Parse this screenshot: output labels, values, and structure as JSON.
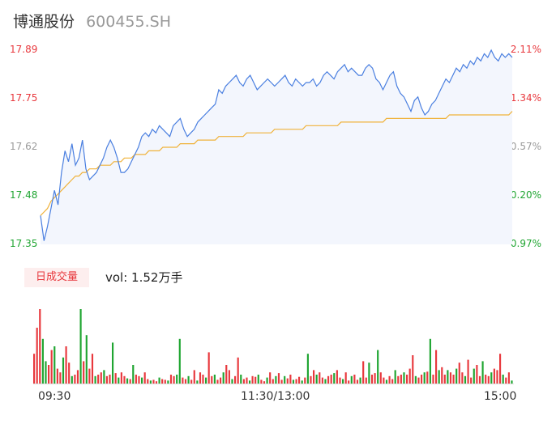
{
  "header": {
    "name": "博通股份",
    "code": "600455.SH"
  },
  "volume_panel": {
    "badge_label": "日成交量",
    "vol_label": "vol: 1.52万手"
  },
  "colors": {
    "up": "#e8383d",
    "down": "#1fa531",
    "price_line": "#4a7fe0",
    "avg_line": "#f0b23a",
    "area_fill": "#f3f6fd",
    "neutral": "#999999"
  },
  "chart_data": [
    {
      "type": "line",
      "title": "",
      "y_left_ticks": [
        "17.89",
        "17.75",
        "17.62",
        "17.48",
        "17.35"
      ],
      "y_right_ticks": [
        "2.11%",
        "1.34%",
        "0.57%",
        "-0.20%",
        "-0.97%"
      ],
      "ylim": [
        17.35,
        17.89
      ],
      "x_ticks": [
        "09:30",
        "11:30/13:00",
        "15:00"
      ],
      "series": [
        {
          "values": [
            17.43,
            17.36,
            17.4,
            17.45,
            17.5,
            17.46,
            17.55,
            17.61,
            17.58,
            17.63,
            17.57,
            17.59,
            17.64,
            17.56,
            17.53,
            17.54,
            17.55,
            17.57,
            17.59,
            17.62,
            17.64,
            17.62,
            17.59,
            17.55,
            17.55,
            17.56,
            17.58,
            17.6,
            17.62,
            17.65,
            17.66,
            17.65,
            17.67,
            17.66,
            17.68,
            17.67,
            17.66,
            17.65,
            17.68,
            17.69,
            17.7,
            17.67,
            17.65,
            17.66,
            17.67,
            17.69,
            17.7,
            17.71,
            17.72,
            17.73,
            17.74,
            17.78,
            17.77,
            17.79,
            17.8,
            17.81,
            17.82,
            17.8,
            17.79,
            17.81,
            17.82,
            17.8,
            17.78,
            17.79,
            17.8,
            17.81,
            17.8,
            17.79,
            17.8,
            17.81,
            17.82,
            17.8,
            17.79,
            17.81,
            17.8,
            17.79,
            17.8,
            17.8,
            17.81,
            17.79,
            17.8,
            17.82,
            17.83,
            17.82,
            17.81,
            17.83,
            17.84,
            17.85,
            17.83,
            17.84,
            17.83,
            17.82,
            17.82,
            17.84,
            17.85,
            17.84,
            17.81,
            17.8,
            17.78,
            17.8,
            17.82,
            17.83,
            17.79,
            17.77,
            17.76,
            17.74,
            17.72,
            17.75,
            17.76,
            17.73,
            17.71,
            17.72,
            17.74,
            17.75,
            17.77,
            17.79,
            17.81,
            17.8,
            17.82,
            17.84,
            17.83,
            17.85,
            17.84,
            17.86,
            17.85,
            17.87,
            17.86,
            17.88,
            17.87,
            17.89,
            17.87,
            17.86,
            17.88,
            17.87,
            17.88,
            17.87
          ]
        },
        {
          "values": [
            17.43,
            17.44,
            17.45,
            17.47,
            17.48,
            17.49,
            17.5,
            17.51,
            17.52,
            17.53,
            17.54,
            17.54,
            17.55,
            17.55,
            17.56,
            17.56,
            17.56,
            17.57,
            17.57,
            17.57,
            17.57,
            17.58,
            17.58,
            17.58,
            17.59,
            17.59,
            17.59,
            17.6,
            17.6,
            17.6,
            17.6,
            17.61,
            17.61,
            17.61,
            17.61,
            17.62,
            17.62,
            17.62,
            17.62,
            17.62,
            17.63,
            17.63,
            17.63,
            17.63,
            17.63,
            17.64,
            17.64,
            17.64,
            17.64,
            17.64,
            17.64,
            17.65,
            17.65,
            17.65,
            17.65,
            17.65,
            17.65,
            17.65,
            17.65,
            17.66,
            17.66,
            17.66,
            17.66,
            17.66,
            17.66,
            17.66,
            17.66,
            17.67,
            17.67,
            17.67,
            17.67,
            17.67,
            17.67,
            17.67,
            17.67,
            17.67,
            17.68,
            17.68,
            17.68,
            17.68,
            17.68,
            17.68,
            17.68,
            17.68,
            17.68,
            17.68,
            17.69,
            17.69,
            17.69,
            17.69,
            17.69,
            17.69,
            17.69,
            17.69,
            17.69,
            17.69,
            17.69,
            17.69,
            17.69,
            17.7,
            17.7,
            17.7,
            17.7,
            17.7,
            17.7,
            17.7,
            17.7,
            17.7,
            17.7,
            17.7,
            17.7,
            17.7,
            17.7,
            17.7,
            17.7,
            17.7,
            17.7,
            17.71,
            17.71,
            17.71,
            17.71,
            17.71,
            17.71,
            17.71,
            17.71,
            17.71,
            17.71,
            17.71,
            17.71,
            17.71,
            17.71,
            17.71,
            17.71,
            17.71,
            17.71,
            17.72
          ]
        }
      ]
    },
    {
      "type": "bar",
      "title": "",
      "ylim": [
        0,
        100
      ],
      "values": [
        40,
        75,
        100,
        60,
        30,
        25,
        45,
        50,
        20,
        15,
        35,
        50,
        28,
        10,
        12,
        18,
        100,
        30,
        65,
        20,
        40,
        10,
        12,
        15,
        18,
        10,
        12,
        55,
        14,
        8,
        15,
        10,
        7,
        6,
        25,
        12,
        10,
        8,
        15,
        6,
        4,
        5,
        3,
        8,
        6,
        5,
        4,
        12,
        10,
        12,
        60,
        8,
        6,
        10,
        5,
        18,
        4,
        15,
        12,
        8,
        42,
        10,
        12,
        5,
        8,
        15,
        25,
        18,
        6,
        10,
        35,
        12,
        6,
        8,
        4,
        10,
        9,
        12,
        5,
        3,
        8,
        15,
        6,
        10,
        14,
        5,
        10,
        7,
        12,
        5,
        6,
        9,
        4,
        8,
        40,
        10,
        18,
        12,
        15,
        8,
        6,
        10,
        12,
        14,
        18,
        8,
        6,
        15,
        4,
        10,
        12,
        5,
        8,
        30,
        8,
        28,
        12,
        14,
        45,
        15,
        8,
        5,
        10,
        6,
        18,
        10,
        12,
        15,
        12,
        20,
        38,
        10,
        8,
        12,
        15,
        16,
        60,
        12,
        45,
        18,
        22,
        12,
        18,
        15,
        12,
        20,
        28,
        15,
        10,
        32,
        8,
        20,
        25,
        10,
        30,
        12,
        10,
        15,
        20,
        18,
        40,
        12,
        8,
        15,
        4
      ],
      "up": [
        1,
        1,
        1,
        0,
        0,
        1,
        1,
        0,
        1,
        1,
        0,
        1,
        1,
        0,
        1,
        1,
        0,
        1,
        0,
        1,
        1,
        0,
        1,
        1,
        0,
        1,
        1,
        0,
        1,
        0,
        1,
        1,
        0,
        1,
        0,
        1,
        1,
        0,
        1,
        1,
        0,
        1,
        1,
        0,
        1,
        1,
        0,
        1,
        1,
        0,
        0,
        1,
        1,
        0,
        1,
        1,
        0,
        1,
        1,
        0,
        1,
        1,
        0,
        1,
        1,
        0,
        1,
        1,
        0,
        1,
        1,
        0,
        1,
        1,
        0,
        1,
        1,
        0,
        1,
        1,
        0,
        1,
        1,
        0,
        1,
        1,
        0,
        1,
        1,
        0,
        1,
        1,
        0,
        1,
        0,
        1,
        1,
        0,
        1,
        1,
        0,
        1,
        1,
        0,
        1,
        1,
        0,
        1,
        1,
        0,
        1,
        1,
        0,
        1,
        1,
        0,
        1,
        1,
        0,
        1,
        1,
        0,
        1,
        1,
        0,
        1,
        1,
        0,
        1,
        1,
        1,
        0,
        1,
        1,
        0,
        1,
        0,
        1,
        1,
        0,
        1,
        1,
        0,
        1,
        1,
        0,
        1,
        1,
        0,
        1,
        1,
        0,
        1,
        1,
        0,
        1,
        1,
        0,
        1,
        1,
        1,
        0,
        1,
        1,
        0
      ]
    }
  ]
}
